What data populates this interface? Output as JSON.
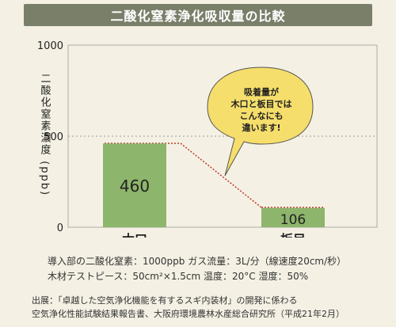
{
  "title": "二酸化窒素浄化吸収量の比較",
  "chart_data": {
    "type": "bar",
    "categories": [
      "木口",
      "板目"
    ],
    "values": [
      460,
      106
    ],
    "value_labels": [
      "460",
      "106"
    ],
    "ylabel": "二酸化窒素濃度 (ppb)",
    "ylim": [
      0,
      1000
    ],
    "yticks": [
      0,
      500,
      1000
    ],
    "ytick_labels": [
      "0",
      "500",
      "1000"
    ],
    "reference_line": 500,
    "bar_color": "#8db56b",
    "grid": false
  },
  "callout": {
    "lines": [
      "吸着量が",
      "木口と板目では",
      "こんなにも",
      "違います!"
    ],
    "fill": "#f5de6b"
  },
  "captions": {
    "line1": "導入部の二酸化窒素：1000ppb ガス流量：3L/分（線速度20cm/秒）",
    "line2": "木材テストピース：50cm²×1.5cm 温度：20°C 湿度：50%"
  },
  "source": {
    "line1": "出展：「卓越した空気浄化機能を有するスギ内装材」の開発に係わる",
    "line2": "空気浄化性能試験結果報告書、大阪府環境農林水産総合研究所（平成21年2月）"
  }
}
